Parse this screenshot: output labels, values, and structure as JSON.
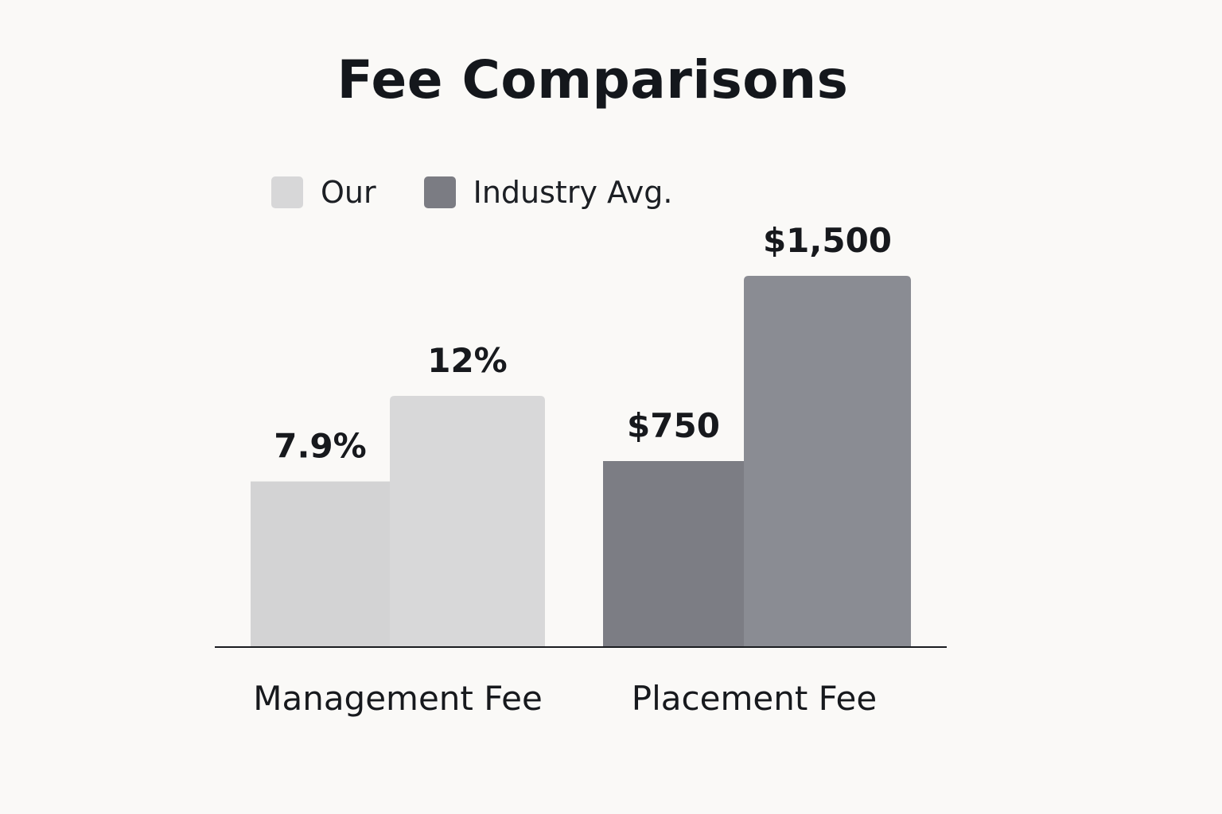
{
  "chart_data": {
    "type": "bar",
    "title": "Fee Comparisons",
    "categories": [
      "Management Fee",
      "Placement Fee"
    ],
    "legend": {
      "placement": "top-left",
      "entries": [
        {
          "name": "Our",
          "color": "#d7d7d8"
        },
        {
          "name": "Industry Avg.",
          "color": "#7b7c83"
        }
      ]
    },
    "bars": [
      {
        "category": "Management Fee",
        "label": "7.9%",
        "value": 7.9,
        "unit": "percent",
        "color": "#d3d3d4"
      },
      {
        "category": "Management Fee",
        "label": "12%",
        "value": 12,
        "unit": "percent",
        "color": "#d8d8d9"
      },
      {
        "category": "Placement Fee",
        "label": "$750",
        "value": 750,
        "unit": "USD",
        "color": "#7c7d84"
      },
      {
        "category": "Placement Fee",
        "label": "$1,500",
        "value": 1500,
        "unit": "USD",
        "color": "#8a8c93"
      }
    ],
    "grid": false
  }
}
